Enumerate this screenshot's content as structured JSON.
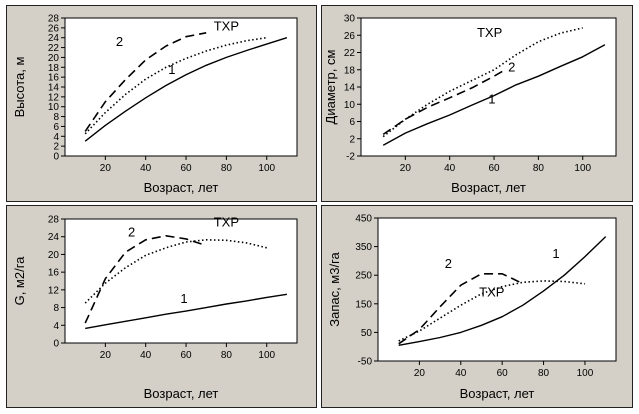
{
  "chart_data": [
    {
      "type": "line",
      "xlabel": "Возраст, лет",
      "ylabel": "Высота, м",
      "xlim": [
        0,
        115
      ],
      "ylim": [
        0,
        28
      ],
      "xticks": [
        20,
        40,
        60,
        80,
        100
      ],
      "yticks": [
        0,
        2,
        4,
        6,
        8,
        10,
        12,
        14,
        16,
        18,
        20,
        22,
        24,
        26,
        28
      ],
      "series": [
        {
          "style": "solid",
          "x": [
            10,
            20,
            30,
            40,
            50,
            60,
            70,
            80,
            90,
            100,
            110
          ],
          "y": [
            3,
            6.2,
            9.1,
            11.8,
            14.3,
            16.5,
            18.4,
            20,
            21.4,
            22.7,
            24
          ]
        },
        {
          "style": "dotted",
          "x": [
            10,
            20,
            30,
            40,
            50,
            60,
            70,
            80,
            90,
            100
          ],
          "y": [
            4.5,
            8.8,
            12.5,
            15.6,
            18,
            19.8,
            21.3,
            22.5,
            23.4,
            24
          ]
        },
        {
          "style": "dashed",
          "x": [
            10,
            20,
            30,
            40,
            50,
            60,
            70
          ],
          "y": [
            5,
            11,
            15.5,
            19.5,
            22.3,
            24.2,
            25
          ]
        }
      ],
      "annotations": [
        {
          "text": "ТХР",
          "x": 80,
          "y": 25.5
        },
        {
          "text": "2",
          "x": 27,
          "y": 22.3
        },
        {
          "text": "1",
          "x": 53,
          "y": 16.6
        }
      ]
    },
    {
      "type": "line",
      "xlabel": "Возраст, лет",
      "ylabel": "Диаметр, см",
      "xlim": [
        0,
        115
      ],
      "ylim": [
        -2,
        30
      ],
      "xticks": [
        20,
        40,
        60,
        80,
        100
      ],
      "yticks": [
        -2,
        2,
        6,
        10,
        14,
        18,
        22,
        26,
        30
      ],
      "series": [
        {
          "style": "solid",
          "x": [
            10,
            20,
            30,
            40,
            50,
            60,
            70,
            80,
            90,
            100,
            110
          ],
          "y": [
            0.5,
            3.3,
            5.5,
            7.5,
            9.8,
            12,
            14.5,
            16.5,
            18.8,
            21,
            23.8
          ]
        },
        {
          "style": "dotted",
          "x": [
            10,
            20,
            30,
            40,
            50,
            60,
            70,
            80,
            90,
            100
          ],
          "y": [
            2.5,
            6.5,
            10,
            13,
            15.5,
            18,
            21.5,
            24.5,
            26.5,
            27.7
          ]
        },
        {
          "style": "dashed",
          "x": [
            10,
            20,
            30,
            40,
            50,
            60,
            65
          ],
          "y": [
            3,
            6.5,
            9.3,
            11.5,
            13.8,
            16.5,
            18
          ]
        }
      ],
      "annotations": [
        {
          "text": "ТХР",
          "x": 58,
          "y": 25.6
        },
        {
          "text": "2",
          "x": 68,
          "y": 17.6
        },
        {
          "text": "1",
          "x": 59,
          "y": 10.2
        }
      ]
    },
    {
      "type": "line",
      "xlabel": "Возраст, лет",
      "ylabel": "G, м2/га",
      "xlim": [
        0,
        115
      ],
      "ylim": [
        0,
        28
      ],
      "xticks": [
        20,
        40,
        60,
        80,
        100
      ],
      "yticks": [
        0,
        4,
        8,
        12,
        16,
        20,
        24,
        28
      ],
      "series": [
        {
          "style": "solid",
          "x": [
            10,
            20,
            30,
            40,
            50,
            60,
            70,
            80,
            90,
            100,
            110
          ],
          "y": [
            3.3,
            4.1,
            4.9,
            5.7,
            6.5,
            7.2,
            8,
            8.8,
            9.5,
            10.3,
            11
          ]
        },
        {
          "style": "dotted",
          "x": [
            10,
            20,
            30,
            40,
            50,
            60,
            70,
            80,
            90,
            100
          ],
          "y": [
            9,
            13.5,
            17,
            19.8,
            21.5,
            22.8,
            23.3,
            23.2,
            22.6,
            21.5
          ]
        },
        {
          "style": "dashed",
          "x": [
            10,
            15,
            20,
            30,
            40,
            50,
            60,
            70
          ],
          "y": [
            4.5,
            9.5,
            14.5,
            20.5,
            23.3,
            24.2,
            23.5,
            22
          ]
        }
      ],
      "annotations": [
        {
          "text": "ТХР",
          "x": 80,
          "y": 26.3
        },
        {
          "text": "2",
          "x": 33,
          "y": 24
        },
        {
          "text": "1",
          "x": 59,
          "y": 9
        }
      ]
    },
    {
      "type": "line",
      "xlabel": "Возраст, лет",
      "ylabel": "Запас, м3/га",
      "xlim": [
        0,
        115
      ],
      "ylim": [
        -50,
        450
      ],
      "xticks": [
        20,
        40,
        60,
        80,
        100
      ],
      "yticks": [
        -50,
        50,
        150,
        250,
        350,
        450
      ],
      "series": [
        {
          "style": "solid",
          "x": [
            10,
            20,
            30,
            40,
            50,
            60,
            70,
            80,
            90,
            100,
            110
          ],
          "y": [
            5,
            18,
            32,
            50,
            75,
            105,
            145,
            195,
            250,
            315,
            385
          ]
        },
        {
          "style": "dotted",
          "x": [
            10,
            20,
            30,
            40,
            50,
            60,
            70,
            80,
            90,
            100
          ],
          "y": [
            20,
            55,
            100,
            145,
            185,
            210,
            225,
            230,
            228,
            220
          ]
        },
        {
          "style": "dashed",
          "x": [
            10,
            20,
            30,
            40,
            50,
            60,
            65,
            70
          ],
          "y": [
            10,
            60,
            140,
            215,
            255,
            255,
            238,
            220
          ]
        }
      ],
      "annotations": [
        {
          "text": "ТХР",
          "x": 55,
          "y": 175
        },
        {
          "text": "2",
          "x": 34,
          "y": 275
        },
        {
          "text": "1",
          "x": 86,
          "y": 310
        }
      ]
    }
  ]
}
